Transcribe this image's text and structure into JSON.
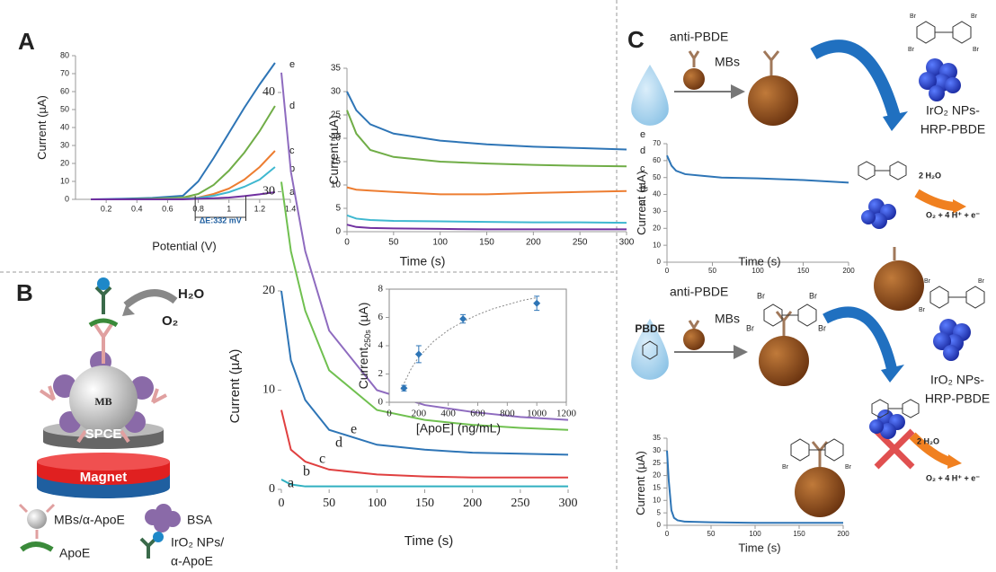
{
  "panels": {
    "a": "A",
    "b": "B",
    "c": "C"
  },
  "diagram_b": {
    "h2o": "H₂O",
    "o2": "O₂",
    "mb": "MB",
    "spce": "SPCE",
    "magnet": "Magnet",
    "legend": [
      "MBs/α-ApoE",
      "BSA",
      "ApoE",
      "IrO₂ NPs/",
      "α-ApoE"
    ]
  },
  "diagram_c": {
    "anti": "anti-PBDE",
    "mbs": "MBs",
    "iro2": "IrO₂ NPs-",
    "hrp": "HRP-PBDE",
    "water": "2 H₂O",
    "product": "O₂ + 4 H⁺ + e⁻",
    "pbde": "PBDE",
    "br": "Br"
  },
  "chart_data": [
    {
      "type": "line",
      "xlabel": "Potential (V)",
      "ylabel": "Current (µA)",
      "annotation": "ΔE:332 mV",
      "x": [
        0.1,
        0.3,
        0.5,
        0.7,
        0.8,
        0.9,
        1.0,
        1.1,
        1.2,
        1.3
      ],
      "xlim": [
        0,
        1.4
      ],
      "ylim": [
        0,
        80
      ],
      "xticks": [
        0.2,
        0.4,
        0.6,
        0.8,
        1,
        1.2,
        1.4
      ],
      "yticks": [
        0,
        10,
        20,
        30,
        40,
        50,
        60,
        70,
        80
      ],
      "series": [
        {
          "name": "e",
          "color": "#2e75b6",
          "values": [
            0,
            0.3,
            0.8,
            2,
            10,
            23,
            37,
            51,
            64,
            76
          ]
        },
        {
          "name": "d",
          "color": "#70ad47",
          "values": [
            0,
            0,
            0.3,
            1,
            3,
            8,
            16,
            26,
            38,
            52
          ]
        },
        {
          "name": "c",
          "color": "#ed7d31",
          "values": [
            0,
            0,
            0,
            0.5,
            1,
            3,
            6,
            11,
            18,
            27
          ]
        },
        {
          "name": "b",
          "color": "#3fb8d0",
          "values": [
            0,
            0,
            0,
            0.3,
            0.8,
            2,
            4,
            7,
            11,
            18
          ]
        },
        {
          "name": "a",
          "color": "#7030a0",
          "values": [
            0,
            0,
            0,
            0,
            0.3,
            0.6,
            1,
            1.8,
            2.8,
            4
          ]
        }
      ]
    },
    {
      "type": "line",
      "xlabel": "Time (s)",
      "ylabel": "Current (µA)",
      "x": [
        0,
        10,
        25,
        50,
        100,
        150,
        200,
        250,
        300
      ],
      "xlim": [
        0,
        300
      ],
      "ylim": [
        0,
        35
      ],
      "xticks": [
        0,
        50,
        100,
        150,
        200,
        250,
        300
      ],
      "yticks": [
        0,
        5,
        10,
        15,
        20,
        25,
        30,
        35
      ],
      "series": [
        {
          "name": "e",
          "color": "#2e75b6",
          "values": [
            30,
            26,
            23,
            21,
            19.5,
            18.7,
            18.2,
            17.9,
            17.6
          ]
        },
        {
          "name": "d",
          "color": "#70ad47",
          "values": [
            26,
            21,
            17.5,
            16,
            15,
            14.6,
            14.3,
            14.1,
            14
          ]
        },
        {
          "name": "c",
          "color": "#ed7d31",
          "values": [
            9.5,
            9,
            8.8,
            8.5,
            8,
            8,
            8.3,
            8.5,
            8.7
          ]
        },
        {
          "name": "b",
          "color": "#3fb8d0",
          "values": [
            3.5,
            2.8,
            2.5,
            2.3,
            2.2,
            2.1,
            2,
            2,
            1.9
          ]
        },
        {
          "name": "a",
          "color": "#7030a0",
          "values": [
            1.5,
            1,
            0.8,
            0.7,
            0.6,
            0.5,
            0.5,
            0.5,
            0.5
          ]
        }
      ]
    },
    {
      "type": "line",
      "xlabel": "Time (s)",
      "ylabel": "Current (µA)",
      "x": [
        0,
        10,
        25,
        50,
        100,
        150,
        200,
        250,
        300
      ],
      "xlim": [
        0,
        300
      ],
      "ylim": [
        0,
        40
      ],
      "xticks": [
        0,
        50,
        100,
        150,
        200,
        250,
        300
      ],
      "yticks": [
        0,
        10,
        20,
        30,
        40
      ],
      "series": [
        {
          "name": "e",
          "color": "#8e6bbf",
          "values": [
            42,
            32,
            24,
            16,
            10,
            8.5,
            7.8,
            7.3,
            7
          ]
        },
        {
          "name": "d",
          "color": "#70c050",
          "values": [
            31,
            24,
            18,
            12,
            8,
            7,
            6.5,
            6.2,
            6
          ]
        },
        {
          "name": "c",
          "color": "#2e75b6",
          "values": [
            20,
            13,
            9,
            6,
            4.5,
            4,
            3.7,
            3.6,
            3.5
          ]
        },
        {
          "name": "b",
          "color": "#e04040",
          "values": [
            8,
            4,
            2.8,
            2,
            1.5,
            1.3,
            1.2,
            1.2,
            1.2
          ]
        },
        {
          "name": "a",
          "color": "#30b0c0",
          "values": [
            1,
            0.5,
            0.3,
            0.3,
            0.3,
            0.3,
            0.3,
            0.3,
            0.3
          ]
        }
      ]
    },
    {
      "type": "scatter",
      "xlabel": "[ApoE] (ng/mL)",
      "ylabel": "Current",
      "ylabel_sub": "250s",
      "ylabel_unit": " (µA)",
      "x": [
        100,
        200,
        500,
        1000
      ],
      "values": [
        1,
        3.4,
        5.9,
        7
      ],
      "error": [
        0.2,
        0.6,
        0.3,
        0.5
      ],
      "color": "#2e75b6",
      "fit": {
        "x": [
          80,
          150,
          200,
          300,
          400,
          500,
          600,
          700,
          800,
          900,
          1000
        ],
        "values": [
          0.9,
          2.4,
          3.2,
          4.3,
          5.1,
          5.7,
          6.2,
          6.6,
          6.9,
          7.2,
          7.4
        ]
      },
      "xlim": [
        0,
        1200
      ],
      "ylim": [
        0,
        8
      ],
      "xticks": [
        0,
        200,
        400,
        600,
        800,
        1000,
        1200
      ],
      "yticks": [
        0,
        2,
        4,
        6,
        8
      ]
    },
    {
      "type": "line",
      "xlabel": "Time (s)",
      "ylabel": "Current (µA)",
      "x": [
        0,
        5,
        10,
        20,
        40,
        60,
        100,
        150,
        200
      ],
      "xlim": [
        0,
        200
      ],
      "ylim": [
        0,
        70
      ],
      "xticks": [
        0,
        50,
        100,
        150,
        200
      ],
      "yticks": [
        0,
        10,
        20,
        30,
        40,
        50,
        60,
        70
      ],
      "series": [
        {
          "color": "#2e75b6",
          "values": [
            63,
            57,
            54,
            52,
            51,
            50,
            49.5,
            48.5,
            47
          ]
        }
      ]
    },
    {
      "type": "line",
      "xlabel": "Time (s)",
      "ylabel": "Current (µA)",
      "x": [
        0,
        2,
        5,
        8,
        12,
        20,
        50,
        100,
        150,
        200
      ],
      "xlim": [
        0,
        200
      ],
      "ylim": [
        0,
        35
      ],
      "xticks": [
        0,
        50,
        100,
        150,
        200
      ],
      "yticks": [
        0,
        5,
        10,
        15,
        20,
        25,
        30,
        35
      ],
      "series": [
        {
          "color": "#2e75b6",
          "values": [
            30,
            18,
            6,
            3,
            2,
            1.5,
            1.2,
            1,
            1,
            1
          ]
        }
      ]
    }
  ]
}
